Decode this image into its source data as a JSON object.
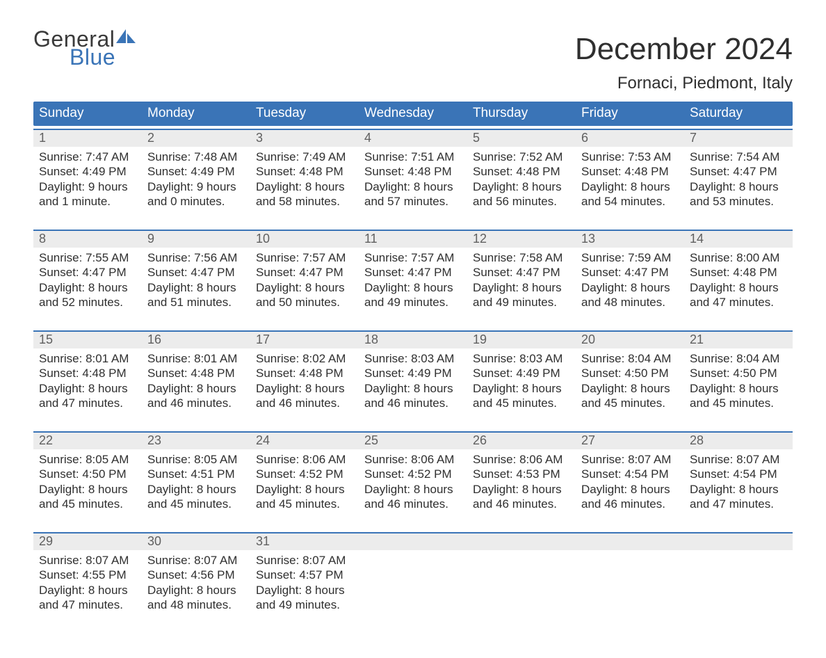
{
  "colors": {
    "brand_blue": "#3a74b7",
    "header_bg": "#3a74b7",
    "header_text": "#ffffff",
    "daynum_bg": "#ececec",
    "daynum_text": "#606060",
    "body_text": "#2f2f2f",
    "page_bg": "#ffffff",
    "logo_gray": "#3a3a3a"
  },
  "typography": {
    "month_title_fontsize": 44,
    "location_fontsize": 24,
    "dayheader_fontsize": 19,
    "daynum_fontsize": 18,
    "cell_fontsize": 17,
    "logo_fontsize": 32
  },
  "logo": {
    "line1": "General",
    "line2": "Blue"
  },
  "title": {
    "month": "December 2024",
    "location": "Fornaci, Piedmont, Italy"
  },
  "calendar": {
    "type": "calendar-table",
    "columns": 7,
    "day_headers": [
      "Sunday",
      "Monday",
      "Tuesday",
      "Wednesday",
      "Thursday",
      "Friday",
      "Saturday"
    ],
    "labels": {
      "sunrise": "Sunrise:",
      "sunset": "Sunset:",
      "daylight": "Daylight:"
    },
    "weeks": [
      [
        {
          "day": "1",
          "sunrise": "7:47 AM",
          "sunset": "4:49 PM",
          "daylight1": "9 hours",
          "daylight2": "and 1 minute."
        },
        {
          "day": "2",
          "sunrise": "7:48 AM",
          "sunset": "4:49 PM",
          "daylight1": "9 hours",
          "daylight2": "and 0 minutes."
        },
        {
          "day": "3",
          "sunrise": "7:49 AM",
          "sunset": "4:48 PM",
          "daylight1": "8 hours",
          "daylight2": "and 58 minutes."
        },
        {
          "day": "4",
          "sunrise": "7:51 AM",
          "sunset": "4:48 PM",
          "daylight1": "8 hours",
          "daylight2": "and 57 minutes."
        },
        {
          "day": "5",
          "sunrise": "7:52 AM",
          "sunset": "4:48 PM",
          "daylight1": "8 hours",
          "daylight2": "and 56 minutes."
        },
        {
          "day": "6",
          "sunrise": "7:53 AM",
          "sunset": "4:48 PM",
          "daylight1": "8 hours",
          "daylight2": "and 54 minutes."
        },
        {
          "day": "7",
          "sunrise": "7:54 AM",
          "sunset": "4:47 PM",
          "daylight1": "8 hours",
          "daylight2": "and 53 minutes."
        }
      ],
      [
        {
          "day": "8",
          "sunrise": "7:55 AM",
          "sunset": "4:47 PM",
          "daylight1": "8 hours",
          "daylight2": "and 52 minutes."
        },
        {
          "day": "9",
          "sunrise": "7:56 AM",
          "sunset": "4:47 PM",
          "daylight1": "8 hours",
          "daylight2": "and 51 minutes."
        },
        {
          "day": "10",
          "sunrise": "7:57 AM",
          "sunset": "4:47 PM",
          "daylight1": "8 hours",
          "daylight2": "and 50 minutes."
        },
        {
          "day": "11",
          "sunrise": "7:57 AM",
          "sunset": "4:47 PM",
          "daylight1": "8 hours",
          "daylight2": "and 49 minutes."
        },
        {
          "day": "12",
          "sunrise": "7:58 AM",
          "sunset": "4:47 PM",
          "daylight1": "8 hours",
          "daylight2": "and 49 minutes."
        },
        {
          "day": "13",
          "sunrise": "7:59 AM",
          "sunset": "4:47 PM",
          "daylight1": "8 hours",
          "daylight2": "and 48 minutes."
        },
        {
          "day": "14",
          "sunrise": "8:00 AM",
          "sunset": "4:48 PM",
          "daylight1": "8 hours",
          "daylight2": "and 47 minutes."
        }
      ],
      [
        {
          "day": "15",
          "sunrise": "8:01 AM",
          "sunset": "4:48 PM",
          "daylight1": "8 hours",
          "daylight2": "and 47 minutes."
        },
        {
          "day": "16",
          "sunrise": "8:01 AM",
          "sunset": "4:48 PM",
          "daylight1": "8 hours",
          "daylight2": "and 46 minutes."
        },
        {
          "day": "17",
          "sunrise": "8:02 AM",
          "sunset": "4:48 PM",
          "daylight1": "8 hours",
          "daylight2": "and 46 minutes."
        },
        {
          "day": "18",
          "sunrise": "8:03 AM",
          "sunset": "4:49 PM",
          "daylight1": "8 hours",
          "daylight2": "and 46 minutes."
        },
        {
          "day": "19",
          "sunrise": "8:03 AM",
          "sunset": "4:49 PM",
          "daylight1": "8 hours",
          "daylight2": "and 45 minutes."
        },
        {
          "day": "20",
          "sunrise": "8:04 AM",
          "sunset": "4:50 PM",
          "daylight1": "8 hours",
          "daylight2": "and 45 minutes."
        },
        {
          "day": "21",
          "sunrise": "8:04 AM",
          "sunset": "4:50 PM",
          "daylight1": "8 hours",
          "daylight2": "and 45 minutes."
        }
      ],
      [
        {
          "day": "22",
          "sunrise": "8:05 AM",
          "sunset": "4:50 PM",
          "daylight1": "8 hours",
          "daylight2": "and 45 minutes."
        },
        {
          "day": "23",
          "sunrise": "8:05 AM",
          "sunset": "4:51 PM",
          "daylight1": "8 hours",
          "daylight2": "and 45 minutes."
        },
        {
          "day": "24",
          "sunrise": "8:06 AM",
          "sunset": "4:52 PM",
          "daylight1": "8 hours",
          "daylight2": "and 45 minutes."
        },
        {
          "day": "25",
          "sunrise": "8:06 AM",
          "sunset": "4:52 PM",
          "daylight1": "8 hours",
          "daylight2": "and 46 minutes."
        },
        {
          "day": "26",
          "sunrise": "8:06 AM",
          "sunset": "4:53 PM",
          "daylight1": "8 hours",
          "daylight2": "and 46 minutes."
        },
        {
          "day": "27",
          "sunrise": "8:07 AM",
          "sunset": "4:54 PM",
          "daylight1": "8 hours",
          "daylight2": "and 46 minutes."
        },
        {
          "day": "28",
          "sunrise": "8:07 AM",
          "sunset": "4:54 PM",
          "daylight1": "8 hours",
          "daylight2": "and 47 minutes."
        }
      ],
      [
        {
          "day": "29",
          "sunrise": "8:07 AM",
          "sunset": "4:55 PM",
          "daylight1": "8 hours",
          "daylight2": "and 47 minutes."
        },
        {
          "day": "30",
          "sunrise": "8:07 AM",
          "sunset": "4:56 PM",
          "daylight1": "8 hours",
          "daylight2": "and 48 minutes."
        },
        {
          "day": "31",
          "sunrise": "8:07 AM",
          "sunset": "4:57 PM",
          "daylight1": "8 hours",
          "daylight2": "and 49 minutes."
        },
        null,
        null,
        null,
        null
      ]
    ]
  }
}
